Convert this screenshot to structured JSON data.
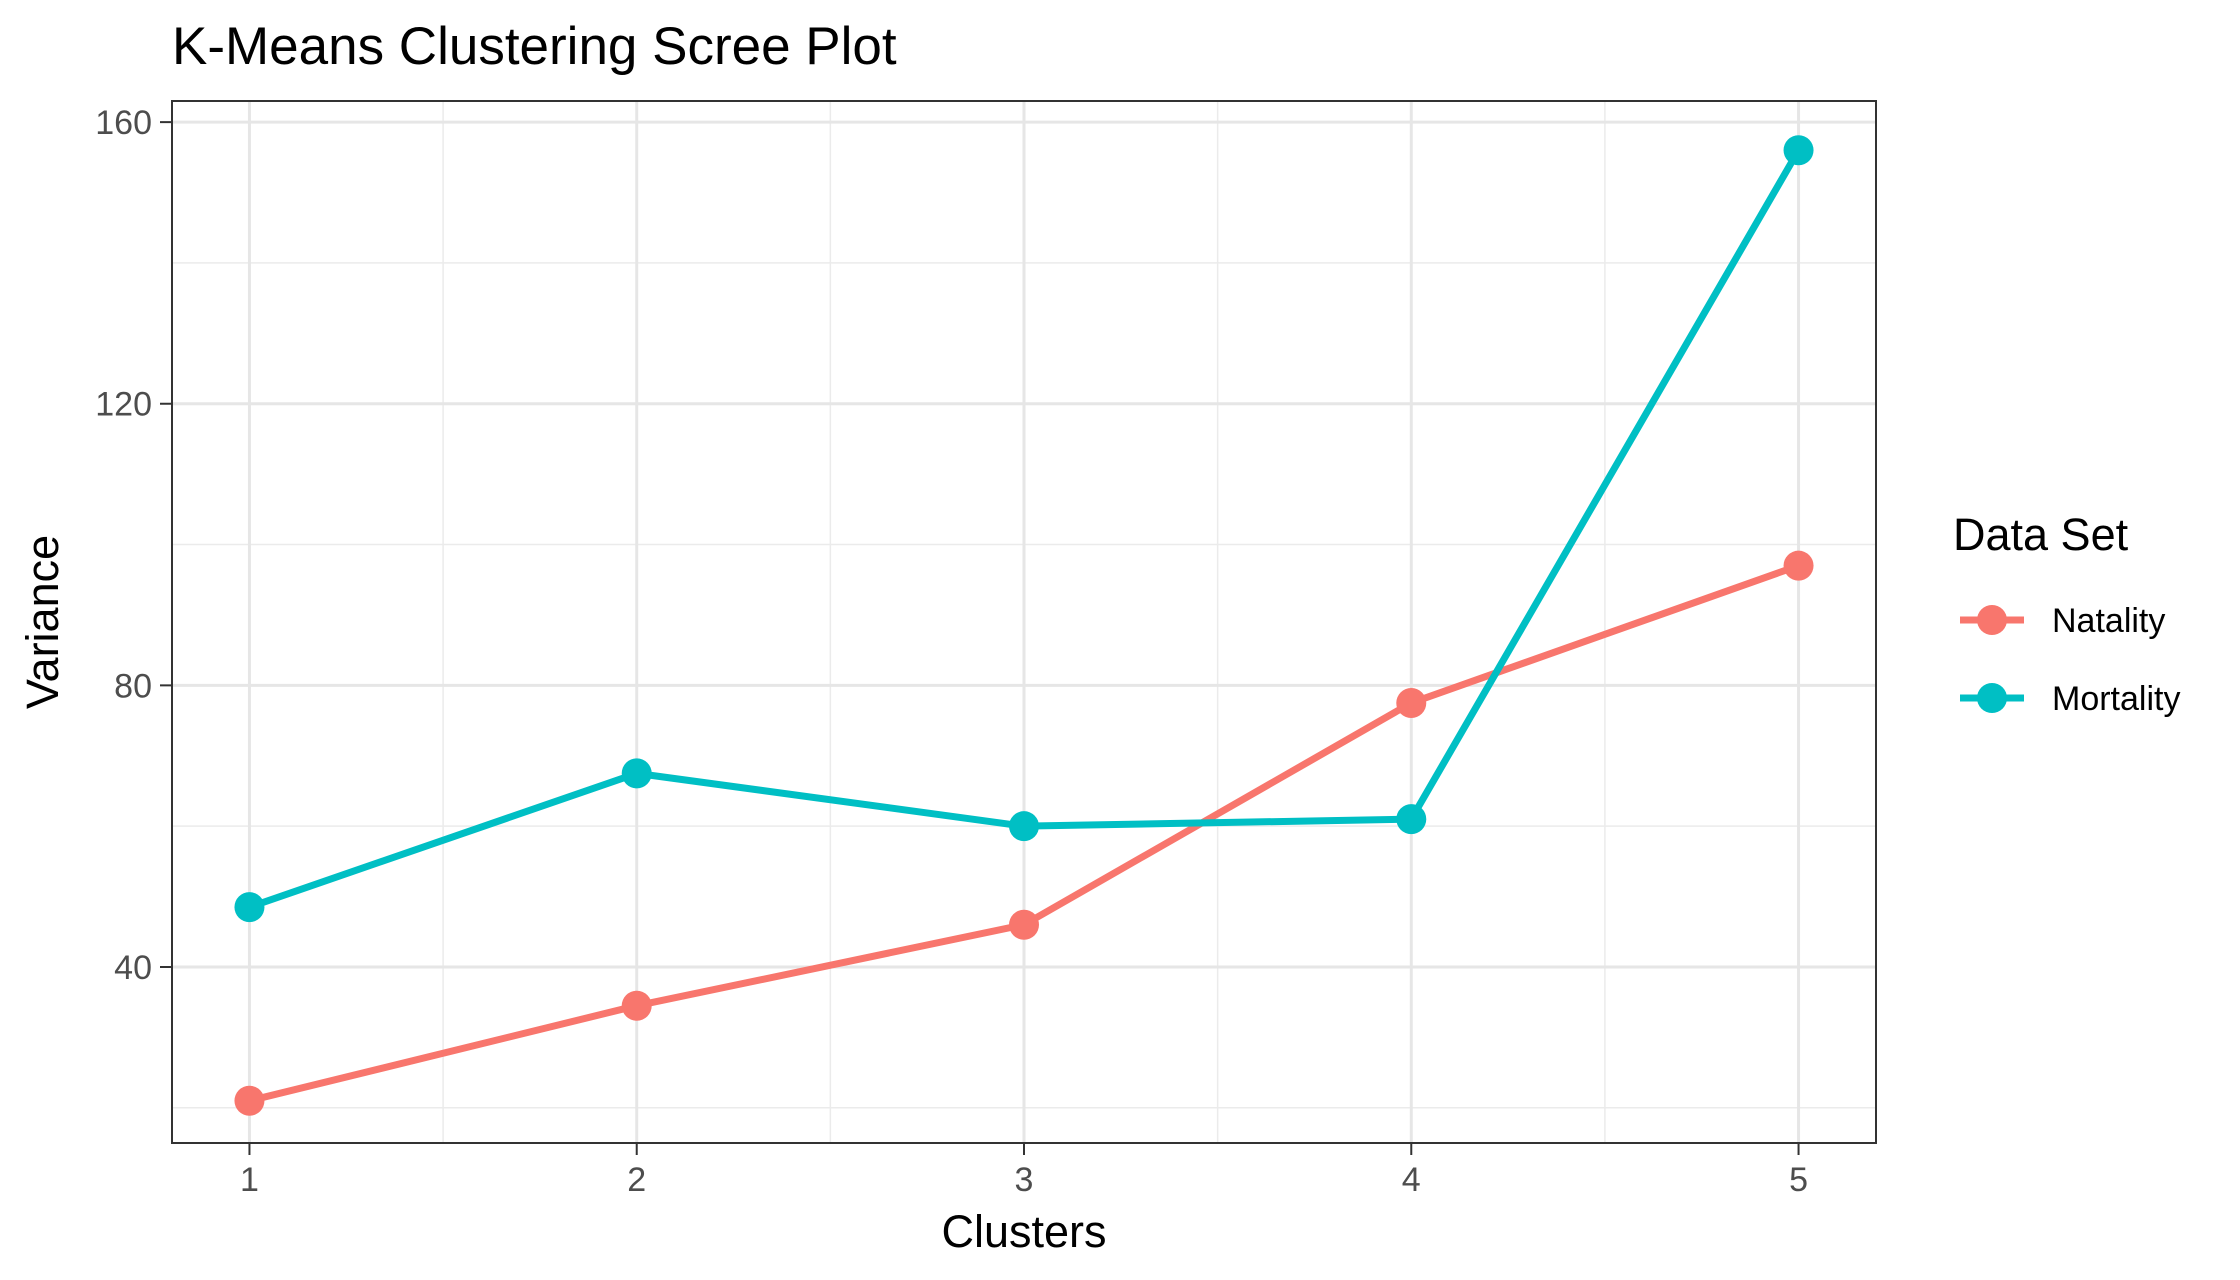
{
  "chart_data": {
    "type": "line",
    "title": "K-Means Clustering Scree Plot",
    "xlabel": "Clusters",
    "ylabel": "Variance",
    "x": [
      1,
      2,
      3,
      4,
      5
    ],
    "xticks": [
      "1",
      "2",
      "3",
      "4",
      "5"
    ],
    "yticks": [
      "40",
      "80",
      "120",
      "160"
    ],
    "xlim": [
      0.8,
      5.2
    ],
    "ylim": [
      15,
      163
    ],
    "grid": true,
    "legend": {
      "title": "Data Set",
      "position": "right"
    },
    "series": [
      {
        "name": "Natality",
        "color": "#F8766D",
        "values": [
          21,
          34.5,
          46,
          77.5,
          97
        ]
      },
      {
        "name": "Mortality",
        "color": "#00BFC4",
        "values": [
          48.5,
          67.5,
          60,
          61,
          156
        ]
      }
    ]
  }
}
